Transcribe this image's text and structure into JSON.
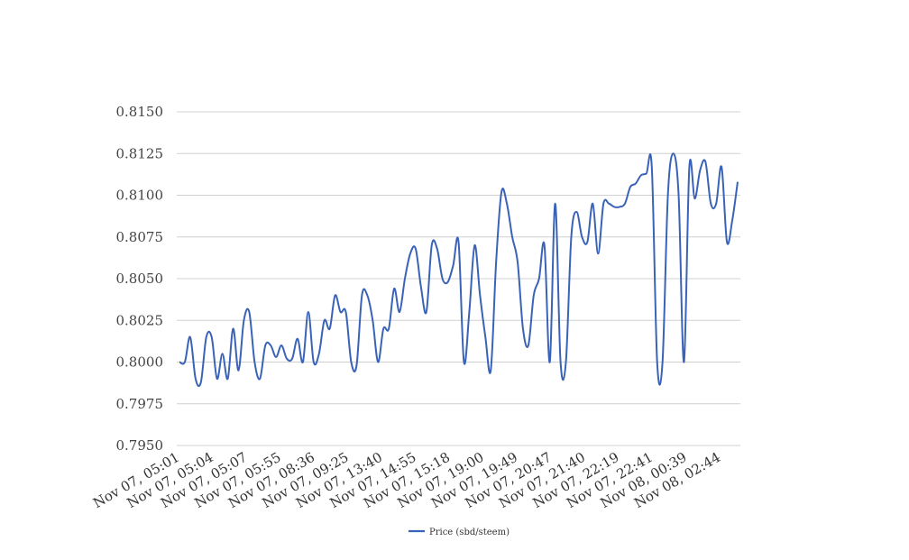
{
  "chart_data": {
    "type": "line",
    "title": "",
    "xlabel": "",
    "ylabel": "",
    "ylim": [
      0.795,
      0.815
    ],
    "yticks": [
      "0.8150",
      "0.8125",
      "0.8100",
      "0.8075",
      "0.8050",
      "0.8025",
      "0.8000",
      "0.7975",
      "0.7950"
    ],
    "grid": true,
    "legend_position": "bottom",
    "x_tick_labels": [
      "Nov 07, 05:01",
      "Nov 07, 05:04",
      "Nov 07, 05:07",
      "Nov 07, 05:55",
      "Nov 07, 08:36",
      "Nov 07, 09:25",
      "Nov 07, 13:40",
      "Nov 07, 14:55",
      "Nov 07, 15:18",
      "Nov 07, 19:00",
      "Nov 07, 19:49",
      "Nov 07, 20:47",
      "Nov 07, 21:40",
      "Nov 07, 22:19",
      "Nov 07, 22:41",
      "Nov 08, 00:39",
      "Nov 08, 02:44"
    ],
    "series": [
      {
        "name": "Price (sbd/steem)",
        "color": "#3a63b8",
        "values": [
          0.8,
          0.8,
          0.8015,
          0.799,
          0.7988,
          0.8015,
          0.8015,
          0.799,
          0.8005,
          0.799,
          0.802,
          0.7995,
          0.8025,
          0.803,
          0.8,
          0.799,
          0.801,
          0.801,
          0.8003,
          0.801,
          0.8002,
          0.8002,
          0.8014,
          0.8,
          0.803,
          0.8,
          0.8005,
          0.8025,
          0.802,
          0.804,
          0.803,
          0.803,
          0.8,
          0.7998,
          0.804,
          0.804,
          0.8025,
          0.8,
          0.802,
          0.802,
          0.8044,
          0.803,
          0.805,
          0.8065,
          0.8068,
          0.8045,
          0.803,
          0.807,
          0.8068,
          0.805,
          0.8048,
          0.8058,
          0.8072,
          0.8,
          0.803,
          0.807,
          0.804,
          0.8015,
          0.7995,
          0.806,
          0.8102,
          0.8095,
          0.8075,
          0.806,
          0.802,
          0.801,
          0.804,
          0.805,
          0.807,
          0.8,
          0.8095,
          0.8,
          0.8,
          0.8075,
          0.809,
          0.8075,
          0.8072,
          0.8095,
          0.8065,
          0.8095,
          0.8095,
          0.8093,
          0.8093,
          0.8095,
          0.8105,
          0.8107,
          0.8112,
          0.8113,
          0.8117,
          0.8,
          0.8,
          0.81,
          0.8125,
          0.81,
          0.8,
          0.8117,
          0.8098,
          0.8115,
          0.812,
          0.8095,
          0.8095,
          0.8117,
          0.8072,
          0.8085,
          0.8108
        ]
      }
    ]
  }
}
